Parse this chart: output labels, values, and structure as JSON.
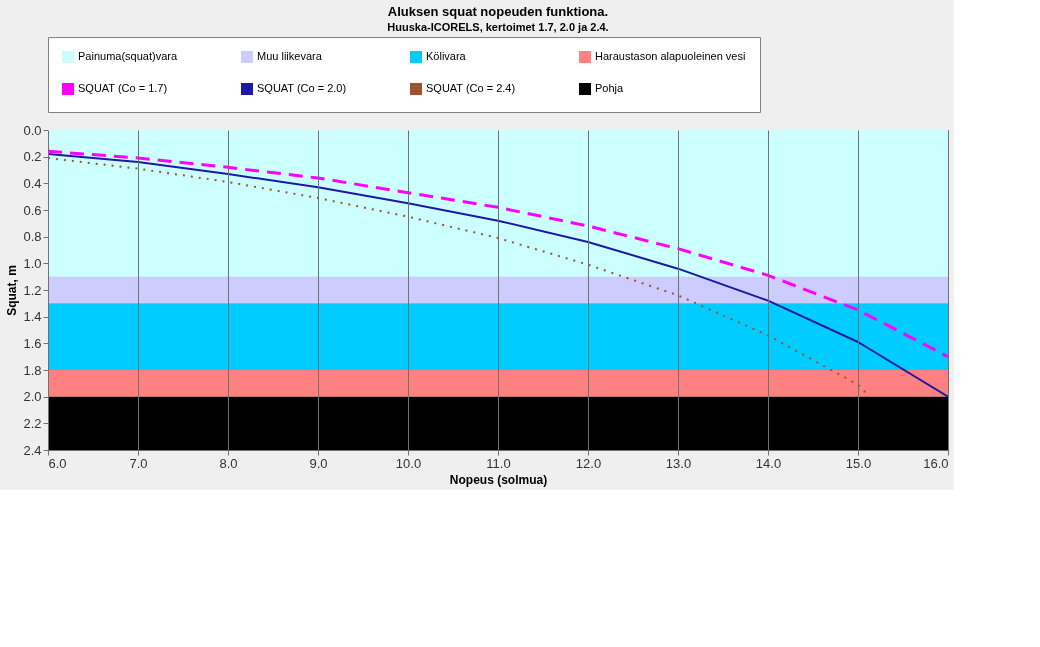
{
  "chart_data": {
    "type": "line",
    "title": "Aluksen squat nopeuden funktiona.",
    "subtitle": "Huuska-ICORELS, kertoimet 1.7, 2.0 ja 2.4.",
    "xlabel": "Nopeus (solmua)",
    "ylabel": "Squat, m",
    "x": [
      6,
      7,
      8,
      9,
      10,
      11,
      12,
      13,
      14,
      15,
      16
    ],
    "series": [
      {
        "name": "Painuma(squat)vara",
        "type": "area",
        "color": "#ccffff",
        "x": [
          6,
          16
        ],
        "values": [
          1.1,
          1.1
        ]
      },
      {
        "name": "Muu liikevara",
        "type": "area",
        "color": "#ccccff",
        "x": [
          6,
          16
        ],
        "values": [
          0.2,
          0.2
        ]
      },
      {
        "name": "Kölivara",
        "type": "area",
        "color": "#00ccff",
        "x": [
          6,
          16
        ],
        "values": [
          0.5,
          0.5
        ]
      },
      {
        "name": "Haraustason alapuoleinen vesi",
        "type": "area",
        "color": "#ff8080",
        "x": [
          6,
          16
        ],
        "values": [
          0.2,
          0.2
        ]
      },
      {
        "name": "SQUAT (Co = 1.7)",
        "color": "#ff00ff",
        "line_style": "dashed",
        "values": [
          0.16,
          0.21,
          0.28,
          0.36,
          0.47,
          0.58,
          0.72,
          0.89,
          1.09,
          1.35,
          1.7
        ]
      },
      {
        "name": "SQUAT (Co = 2.0)",
        "color": "#1a1aa6",
        "line_style": "solid",
        "values": [
          0.18,
          0.24,
          0.33,
          0.43,
          0.55,
          0.68,
          0.84,
          1.04,
          1.28,
          1.59,
          2.0
        ]
      },
      {
        "name": "SQUAT (Co = 2.4)",
        "color": "#a0522d",
        "line_style": "dotted",
        "x": [
          6,
          7,
          8,
          9,
          10,
          11,
          12,
          13,
          14,
          15,
          15.1
        ],
        "values": [
          0.21,
          0.29,
          0.39,
          0.51,
          0.65,
          0.81,
          1.01,
          1.24,
          1.54,
          1.91,
          1.98
        ]
      },
      {
        "name": "Pohja",
        "type": "area",
        "color": "#000000",
        "x": [
          6,
          16
        ],
        "values": [
          0.4,
          0.4
        ]
      }
    ],
    "stacked": true,
    "xlim": [
      6,
      16
    ],
    "xticks": [
      {
        "value": 6,
        "label": "6.0"
      },
      {
        "value": 7,
        "label": "7.0"
      },
      {
        "value": 8,
        "label": "8.0"
      },
      {
        "value": 9,
        "label": "9.0"
      },
      {
        "value": 10,
        "label": "10.0"
      },
      {
        "value": 11,
        "label": "11.0"
      },
      {
        "value": 12,
        "label": "12.0"
      },
      {
        "value": 13,
        "label": "13.0"
      },
      {
        "value": 14,
        "label": "14.0"
      },
      {
        "value": 15,
        "label": "15.0"
      },
      {
        "value": 16,
        "label": "16.0"
      }
    ],
    "ylim": [
      2.4,
      0
    ],
    "yticks": [
      {
        "value": 0,
        "label": "0.0"
      },
      0.2,
      0.4,
      0.6,
      0.8,
      {
        "value": 1,
        "label": "1.0"
      },
      1.2,
      1.4,
      1.6,
      1.8,
      {
        "value": 2,
        "label": "2.0"
      },
      2.2,
      2.4
    ],
    "grid": "x",
    "legend": "top"
  }
}
